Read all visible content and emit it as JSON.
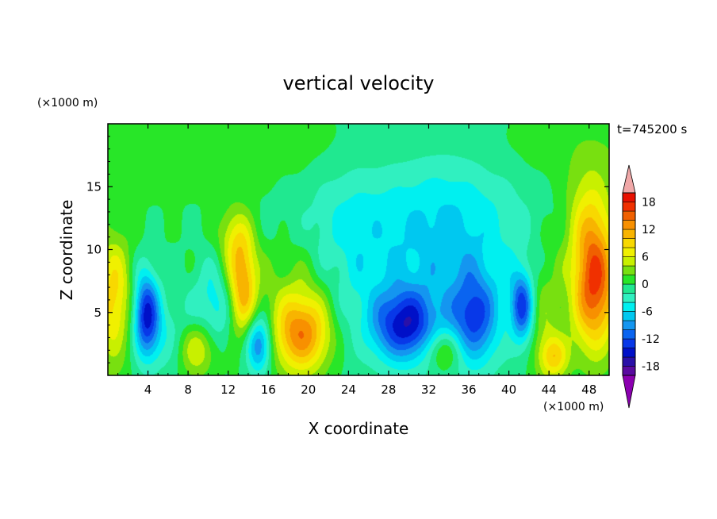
{
  "chart_data": {
    "type": "heatmap",
    "title": "vertical velocity",
    "xlabel": "X coordinate",
    "ylabel": "Z coordinate",
    "x_unit": "(×1000 m)",
    "y_unit": "(×1000 m)",
    "time_label": "t=745200 s",
    "xlim": [
      0,
      50
    ],
    "ylim": [
      0,
      20
    ],
    "x_ticks": [
      "4",
      "8",
      "12",
      "16",
      "20",
      "24",
      "28",
      "32",
      "36",
      "40",
      "44",
      "48"
    ],
    "y_ticks": [
      "5",
      "10",
      "15"
    ],
    "colorbar_ticks": [
      "18",
      "12",
      "6",
      "0",
      "-6",
      "-12",
      "-18"
    ],
    "colorbar_levels": [
      {
        "level": -21,
        "color": "#8b00b0"
      },
      {
        "level": -19,
        "color": "#5a0aa0"
      },
      {
        "level": -17,
        "color": "#2a10a8"
      },
      {
        "level": -15,
        "color": "#0010c8"
      },
      {
        "level": -13,
        "color": "#0838e8"
      },
      {
        "level": -11,
        "color": "#0a64f0"
      },
      {
        "level": -9,
        "color": "#1496f0"
      },
      {
        "level": -7,
        "color": "#00c8f0"
      },
      {
        "level": -5,
        "color": "#00f0f0"
      },
      {
        "level": -3,
        "color": "#30f0c0"
      },
      {
        "level": -1,
        "color": "#20e890"
      },
      {
        "level": 1,
        "color": "#28e628"
      },
      {
        "level": 3,
        "color": "#78e010"
      },
      {
        "level": 5,
        "color": "#c8f000"
      },
      {
        "level": 7,
        "color": "#f0f000"
      },
      {
        "level": 9,
        "color": "#f8d800"
      },
      {
        "level": 11,
        "color": "#f8b400"
      },
      {
        "level": 13,
        "color": "#f89000"
      },
      {
        "level": 15,
        "color": "#f06000"
      },
      {
        "level": 17,
        "color": "#f03000"
      },
      {
        "level": 19,
        "color": "#e81000"
      },
      {
        "level": 21,
        "color": "#f0a8a8"
      }
    ],
    "features": [
      {
        "x": 0.5,
        "z": 6.0,
        "value": 9,
        "sx": 1.3,
        "sz": 3.5
      },
      {
        "x": 3.8,
        "z": 5.0,
        "value": -14,
        "sx": 0.9,
        "sz": 2.3
      },
      {
        "x": 6.5,
        "z": 3.0,
        "value": -4,
        "sx": 2.5,
        "sz": 2.0
      },
      {
        "x": 8.8,
        "z": 2.3,
        "value": 9,
        "sx": 1.4,
        "sz": 1.6
      },
      {
        "x": 10.5,
        "z": 5.5,
        "value": -5,
        "sx": 1.5,
        "sz": 2.5
      },
      {
        "x": 13.4,
        "z": 7.2,
        "value": 12,
        "sx": 1.0,
        "sz": 2.8
      },
      {
        "x": 12.5,
        "z": 11.0,
        "value": 5,
        "sx": 1.2,
        "sz": 1.8
      },
      {
        "x": 15.0,
        "z": 2.5,
        "value": -11,
        "sx": 0.9,
        "sz": 1.6
      },
      {
        "x": 19.3,
        "z": 3.3,
        "value": 14,
        "sx": 2.0,
        "sz": 2.2
      },
      {
        "x": 19.0,
        "z": 7.5,
        "value": 3,
        "sx": 3.0,
        "sz": 2.5
      },
      {
        "x": 24.0,
        "z": 10.0,
        "value": -3,
        "sx": 3.0,
        "sz": 5.0
      },
      {
        "x": 29.5,
        "z": 4.0,
        "value": -13,
        "sx": 2.2,
        "sz": 2.0
      },
      {
        "x": 33.5,
        "z": 2.0,
        "value": 6,
        "sx": 1.3,
        "sz": 1.2
      },
      {
        "x": 36.5,
        "z": 4.5,
        "value": -10,
        "sx": 1.6,
        "sz": 2.5
      },
      {
        "x": 34.0,
        "z": 10.0,
        "value": -5,
        "sx": 5.0,
        "sz": 6.0
      },
      {
        "x": 41.3,
        "z": 5.5,
        "value": -12,
        "sx": 0.8,
        "sz": 2.0
      },
      {
        "x": 43.5,
        "z": 5.0,
        "value": 4,
        "sx": 1.3,
        "sz": 4.0
      },
      {
        "x": 44.5,
        "z": 1.5,
        "value": 8,
        "sx": 1.0,
        "sz": 1.2
      },
      {
        "x": 48.5,
        "z": 7.0,
        "value": 16,
        "sx": 1.6,
        "sz": 3.5
      },
      {
        "x": 48.0,
        "z": 12.5,
        "value": 6,
        "sx": 1.6,
        "sz": 3.0
      }
    ]
  }
}
